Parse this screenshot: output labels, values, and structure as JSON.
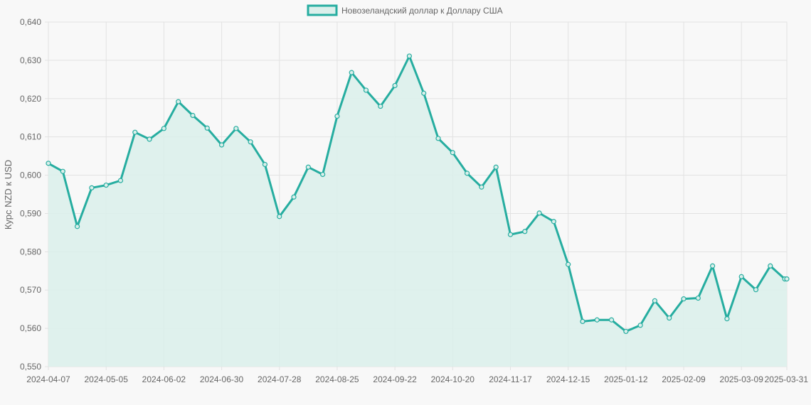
{
  "legend": {
    "label": "Новозеландский доллар к Доллару США"
  },
  "colors": {
    "line": "#26ada0",
    "fill": "#dbefeb",
    "grid": "#e2e2e2",
    "background": "#f8f8f8"
  },
  "chart_data": {
    "type": "line",
    "ylabel": "Курс NZD к USD",
    "ylim": [
      0.55,
      0.64
    ],
    "yticks": [
      "0,550",
      "0,560",
      "0,570",
      "0,580",
      "0,590",
      "0,600",
      "0,610",
      "0,620",
      "0,630",
      "0,640"
    ],
    "xtick_labels": [
      "2024-04-07",
      "2024-05-05",
      "2024-06-02",
      "2024-06-30",
      "2024-07-28",
      "2024-08-25",
      "2024-09-22",
      "2024-10-20",
      "2024-11-17",
      "2024-12-15",
      "2025-01-12",
      "2025-02-09",
      "2025-03-09",
      "2025-03-31"
    ],
    "grid": true,
    "legend_position": "top-center",
    "series": [
      {
        "name": "Новозеландский доллар к Доллару США",
        "x": [
          "2024-04-07",
          "2024-04-14",
          "2024-04-21",
          "2024-04-28",
          "2024-05-05",
          "2024-05-12",
          "2024-05-19",
          "2024-05-26",
          "2024-06-02",
          "2024-06-09",
          "2024-06-16",
          "2024-06-23",
          "2024-06-30",
          "2024-07-07",
          "2024-07-14",
          "2024-07-21",
          "2024-07-28",
          "2024-08-04",
          "2024-08-11",
          "2024-08-18",
          "2024-08-25",
          "2024-09-01",
          "2024-09-08",
          "2024-09-15",
          "2024-09-22",
          "2024-09-29",
          "2024-10-06",
          "2024-10-13",
          "2024-10-20",
          "2024-10-27",
          "2024-11-03",
          "2024-11-10",
          "2024-11-17",
          "2024-11-24",
          "2024-12-01",
          "2024-12-08",
          "2024-12-15",
          "2024-12-22",
          "2024-12-29",
          "2025-01-05",
          "2025-01-12",
          "2025-01-19",
          "2025-01-26",
          "2025-02-02",
          "2025-02-09",
          "2025-02-16",
          "2025-02-23",
          "2025-03-02",
          "2025-03-09",
          "2025-03-16",
          "2025-03-23",
          "2025-03-30",
          "2025-03-31"
        ],
        "values": [
          0.6031,
          0.601,
          0.5866,
          0.5967,
          0.5974,
          0.5986,
          0.6112,
          0.6094,
          0.6122,
          0.6192,
          0.6156,
          0.6123,
          0.6079,
          0.6122,
          0.6087,
          0.6028,
          0.5892,
          0.5943,
          0.6021,
          0.6002,
          0.6154,
          0.6268,
          0.6222,
          0.618,
          0.6234,
          0.6311,
          0.6214,
          0.6096,
          0.6059,
          0.6005,
          0.5969,
          0.6021,
          0.5845,
          0.5853,
          0.5901,
          0.5879,
          0.5767,
          0.5618,
          0.5622,
          0.5622,
          0.5592,
          0.5608,
          0.5672,
          0.5627,
          0.5677,
          0.5679,
          0.5763,
          0.5625,
          0.5735,
          0.5701,
          0.5763,
          0.5729,
          0.5729
        ]
      }
    ]
  }
}
